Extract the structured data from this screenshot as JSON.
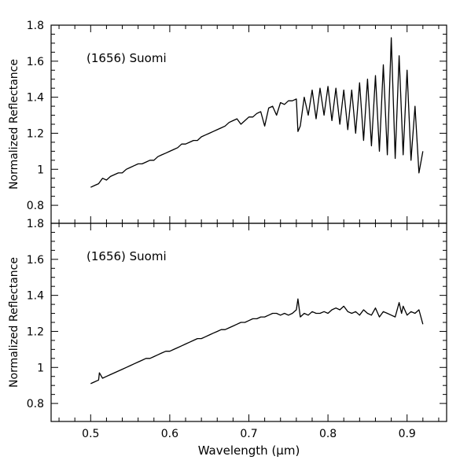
{
  "figure": {
    "xlabel": "Wavelength (μm)",
    "ylabel": "Normalized Reflectance"
  },
  "chart_data": [
    {
      "type": "line",
      "annotation": "(1656) Suomi",
      "ylabel": "Normalized Reflectance",
      "xlim": [
        0.45,
        0.95
      ],
      "ylim": [
        0.7,
        1.8
      ],
      "yticks": [
        0.8,
        1,
        1.2,
        1.4,
        1.6,
        1.8
      ],
      "ytick_labels": [
        "0.8",
        "1",
        "1.2",
        "1.4",
        "1.6",
        "1.8"
      ],
      "grid": false,
      "series": [
        {
          "x": [
            0.5,
            0.505,
            0.51,
            0.515,
            0.52,
            0.525,
            0.53,
            0.535,
            0.54,
            0.545,
            0.55,
            0.555,
            0.56,
            0.565,
            0.57,
            0.575,
            0.58,
            0.585,
            0.59,
            0.595,
            0.6,
            0.605,
            0.61,
            0.615,
            0.62,
            0.625,
            0.63,
            0.635,
            0.64,
            0.645,
            0.65,
            0.655,
            0.66,
            0.665,
            0.67,
            0.675,
            0.68,
            0.685,
            0.69,
            0.695,
            0.7,
            0.705,
            0.71,
            0.715,
            0.72,
            0.725,
            0.73,
            0.735,
            0.74,
            0.745,
            0.75,
            0.755,
            0.76,
            0.762,
            0.765,
            0.77,
            0.775,
            0.78,
            0.785,
            0.79,
            0.795,
            0.8,
            0.805,
            0.81,
            0.815,
            0.82,
            0.825,
            0.83,
            0.835,
            0.84,
            0.845,
            0.85,
            0.855,
            0.86,
            0.865,
            0.87,
            0.875,
            0.88,
            0.885,
            0.89,
            0.895,
            0.9,
            0.905,
            0.91,
            0.915,
            0.92
          ],
          "y": [
            0.9,
            0.91,
            0.92,
            0.95,
            0.94,
            0.96,
            0.97,
            0.98,
            0.98,
            1.0,
            1.01,
            1.02,
            1.03,
            1.03,
            1.04,
            1.05,
            1.05,
            1.07,
            1.08,
            1.09,
            1.1,
            1.11,
            1.12,
            1.14,
            1.14,
            1.15,
            1.16,
            1.16,
            1.18,
            1.19,
            1.2,
            1.21,
            1.22,
            1.23,
            1.24,
            1.26,
            1.27,
            1.28,
            1.25,
            1.27,
            1.29,
            1.29,
            1.31,
            1.32,
            1.24,
            1.34,
            1.35,
            1.3,
            1.37,
            1.36,
            1.38,
            1.38,
            1.39,
            1.21,
            1.24,
            1.4,
            1.3,
            1.44,
            1.28,
            1.45,
            1.3,
            1.46,
            1.27,
            1.45,
            1.25,
            1.44,
            1.22,
            1.44,
            1.2,
            1.48,
            1.16,
            1.5,
            1.13,
            1.52,
            1.1,
            1.58,
            1.08,
            1.73,
            1.06,
            1.63,
            1.08,
            1.55,
            1.05,
            1.35,
            0.98,
            1.1
          ]
        }
      ]
    },
    {
      "type": "line",
      "annotation": "(1656) Suomi",
      "xlabel": "Wavelength (μm)",
      "ylabel": "Normalized Reflectance",
      "xlim": [
        0.45,
        0.95
      ],
      "ylim": [
        0.7,
        1.8
      ],
      "xticks": [
        0.5,
        0.6,
        0.7,
        0.8,
        0.9
      ],
      "xtick_labels": [
        "0.5",
        "0.6",
        "0.7",
        "0.8",
        "0.9"
      ],
      "yticks": [
        0.8,
        1,
        1.2,
        1.4,
        1.6,
        1.8
      ],
      "ytick_labels": [
        "0.8",
        "1",
        "1.2",
        "1.4",
        "1.6",
        "1.8"
      ],
      "grid": false,
      "series": [
        {
          "x": [
            0.5,
            0.505,
            0.51,
            0.511,
            0.515,
            0.52,
            0.525,
            0.53,
            0.535,
            0.54,
            0.545,
            0.55,
            0.555,
            0.56,
            0.565,
            0.57,
            0.575,
            0.58,
            0.585,
            0.59,
            0.595,
            0.6,
            0.605,
            0.61,
            0.615,
            0.62,
            0.625,
            0.63,
            0.635,
            0.64,
            0.645,
            0.65,
            0.655,
            0.66,
            0.665,
            0.67,
            0.675,
            0.68,
            0.685,
            0.69,
            0.695,
            0.7,
            0.705,
            0.71,
            0.715,
            0.72,
            0.725,
            0.73,
            0.735,
            0.74,
            0.745,
            0.75,
            0.755,
            0.76,
            0.762,
            0.765,
            0.77,
            0.775,
            0.78,
            0.785,
            0.79,
            0.795,
            0.8,
            0.805,
            0.81,
            0.815,
            0.82,
            0.825,
            0.83,
            0.835,
            0.84,
            0.845,
            0.85,
            0.855,
            0.86,
            0.865,
            0.87,
            0.875,
            0.88,
            0.885,
            0.89,
            0.893,
            0.895,
            0.9,
            0.905,
            0.91,
            0.915,
            0.92
          ],
          "y": [
            0.91,
            0.92,
            0.93,
            0.97,
            0.94,
            0.95,
            0.96,
            0.97,
            0.98,
            0.99,
            1.0,
            1.01,
            1.02,
            1.03,
            1.04,
            1.05,
            1.05,
            1.06,
            1.07,
            1.08,
            1.09,
            1.09,
            1.1,
            1.11,
            1.12,
            1.13,
            1.14,
            1.15,
            1.16,
            1.16,
            1.17,
            1.18,
            1.19,
            1.2,
            1.21,
            1.21,
            1.22,
            1.23,
            1.24,
            1.25,
            1.25,
            1.26,
            1.27,
            1.27,
            1.28,
            1.28,
            1.29,
            1.3,
            1.3,
            1.29,
            1.3,
            1.29,
            1.3,
            1.32,
            1.38,
            1.28,
            1.3,
            1.29,
            1.31,
            1.3,
            1.3,
            1.31,
            1.3,
            1.32,
            1.33,
            1.32,
            1.34,
            1.31,
            1.3,
            1.31,
            1.29,
            1.32,
            1.3,
            1.29,
            1.33,
            1.28,
            1.31,
            1.3,
            1.29,
            1.28,
            1.36,
            1.3,
            1.34,
            1.29,
            1.31,
            1.3,
            1.32,
            1.24
          ]
        }
      ]
    }
  ]
}
